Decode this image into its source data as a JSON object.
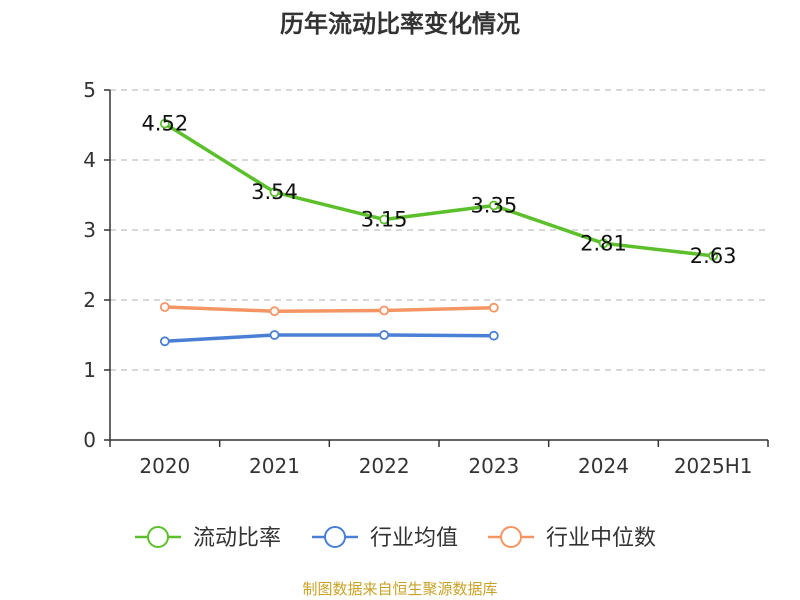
{
  "chart_data": {
    "type": "line",
    "title": "历年流动比率变化情况",
    "categories": [
      "2020",
      "2021",
      "2022",
      "2023",
      "2024",
      "2025H1"
    ],
    "ylim": [
      0,
      5
    ],
    "yticks": [
      "0",
      "1",
      "2",
      "3",
      "4",
      "5"
    ],
    "grid": true,
    "legend_position": "bottom",
    "series": [
      {
        "name": "流动比率",
        "color": "#5cc02c",
        "values": [
          4.52,
          3.54,
          3.15,
          3.35,
          2.81,
          2.63
        ],
        "show_labels": true
      },
      {
        "name": "行业均值",
        "color": "#4a7fd6",
        "values": [
          1.41,
          1.5,
          1.5,
          1.49,
          null,
          null
        ],
        "show_labels": false
      },
      {
        "name": "行业中位数",
        "color": "#f59563",
        "values": [
          1.9,
          1.84,
          1.85,
          1.89,
          null,
          null
        ],
        "show_labels": false
      }
    ]
  },
  "source_note": "制图数据来自恒生聚源数据库"
}
